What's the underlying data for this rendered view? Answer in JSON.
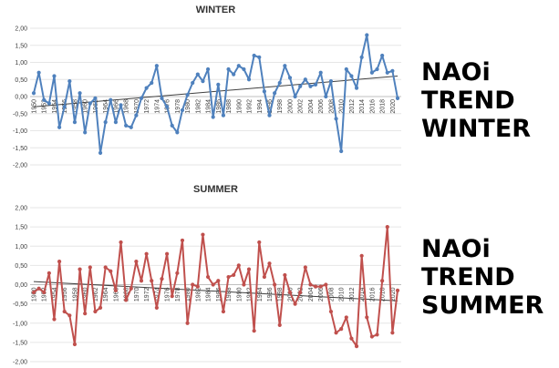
{
  "colors": {
    "winter": "#4f81bd",
    "summer": "#c0504d",
    "trend": "#404040",
    "grid": "#e6e6e6"
  },
  "side_labels": {
    "winter": [
      "NAOi",
      "TREND",
      "WINTER"
    ],
    "summer": [
      "NAOi",
      "TREND",
      "SUMMER"
    ]
  },
  "chart_data": [
    {
      "type": "line",
      "title": "WINTER",
      "xlabel": "",
      "ylabel": "",
      "ylim": [
        -2,
        2
      ],
      "yticks": [
        "2,00",
        "1,50",
        "1,00",
        "0,50",
        "0,00",
        "-0,50",
        "-1,00",
        "-1,50",
        "-2,00"
      ],
      "x_start": 1950,
      "x_end": 2021,
      "xtick_labels": [
        "1950",
        "1952",
        "1954",
        "1956",
        "1958",
        "1960",
        "1962",
        "1964",
        "1966",
        "1968",
        "1970",
        "1972",
        "1974",
        "1976",
        "1978",
        "1980",
        "1982",
        "1984",
        "1986",
        "1988",
        "1990",
        "1992",
        "1994",
        "1996",
        "1998",
        "2000",
        "2002",
        "2004",
        "2006",
        "2008",
        "2010",
        "2012",
        "2014",
        "2016",
        "2018",
        "2020"
      ],
      "grid": true,
      "trendline": {
        "start": -0.3,
        "end": 0.6
      },
      "series": [
        {
          "values": [
            0.1,
            0.7,
            -0.1,
            -0.2,
            0.6,
            -0.9,
            -0.3,
            0.45,
            -0.75,
            0.1,
            -1.05,
            -0.2,
            -0.05,
            -1.65,
            -0.75,
            -0.1,
            -0.75,
            -0.25,
            -0.85,
            -0.9,
            -0.55,
            -0.05,
            0.25,
            0.4,
            0.9,
            -0.05,
            -0.3,
            -0.85,
            -1.05,
            -0.4,
            0.05,
            0.4,
            0.65,
            0.45,
            0.8,
            -0.6,
            0.35,
            -0.55,
            0.8,
            0.65,
            0.9,
            0.8,
            0.5,
            1.2,
            1.15,
            0.15,
            -0.55,
            0.1,
            0.4,
            0.9,
            0.55,
            0.0,
            0.3,
            0.5,
            0.3,
            0.35,
            0.7,
            0.0,
            0.45,
            -0.65,
            -1.6,
            0.8,
            0.6,
            0.25,
            1.15,
            1.8,
            0.7,
            0.8,
            1.2,
            0.7,
            0.75,
            -0.05
          ]
        }
      ]
    },
    {
      "type": "line",
      "title": "SUMMER",
      "xlabel": "",
      "ylabel": "",
      "ylim": [
        -2,
        2
      ],
      "yticks": [
        "2,00",
        "1,50",
        "1,00",
        "0,50",
        "0,00",
        "-0,50",
        "-1,00",
        "-1,50",
        "-2,00"
      ],
      "x_start": 1950,
      "x_end": 2021,
      "xtick_labels": [
        "1950",
        "1952",
        "1954",
        "1956",
        "1958",
        "1960",
        "1962",
        "1964",
        "1966",
        "1968",
        "1970",
        "1972",
        "1974",
        "1976",
        "1978",
        "1980",
        "1982",
        "1984",
        "1986",
        "1988",
        "1990",
        "1992",
        "1994",
        "1996",
        "1998",
        "2000",
        "2002",
        "2004",
        "2006",
        "2008",
        "2010",
        "2012",
        "2014",
        "2016",
        "2018",
        "2020"
      ],
      "grid": true,
      "trendline": {
        "start": 0.08,
        "end": -0.42
      },
      "series": [
        {
          "values": [
            -0.2,
            -0.1,
            -0.2,
            0.3,
            -0.9,
            0.6,
            -0.7,
            -0.8,
            -1.55,
            0.4,
            -0.75,
            0.45,
            -0.7,
            -0.6,
            0.45,
            0.35,
            -0.15,
            1.1,
            -0.4,
            -0.1,
            0.6,
            0.1,
            0.8,
            0.1,
            -0.6,
            0.15,
            0.8,
            -0.3,
            0.3,
            1.15,
            -1.0,
            0.0,
            -0.05,
            1.3,
            0.2,
            0.0,
            0.1,
            -0.7,
            0.2,
            0.25,
            0.5,
            0.0,
            0.4,
            -1.2,
            1.1,
            0.2,
            0.55,
            0.0,
            -1.05,
            0.25,
            -0.2,
            -0.5,
            -0.2,
            0.45,
            0.0,
            -0.05,
            -0.05,
            0.0,
            -0.7,
            -1.25,
            -1.15,
            -0.85,
            -1.4,
            -1.6,
            0.75,
            -0.85,
            -1.35,
            -1.3,
            0.1,
            1.5,
            -1.25,
            -0.15
          ]
        }
      ]
    }
  ]
}
